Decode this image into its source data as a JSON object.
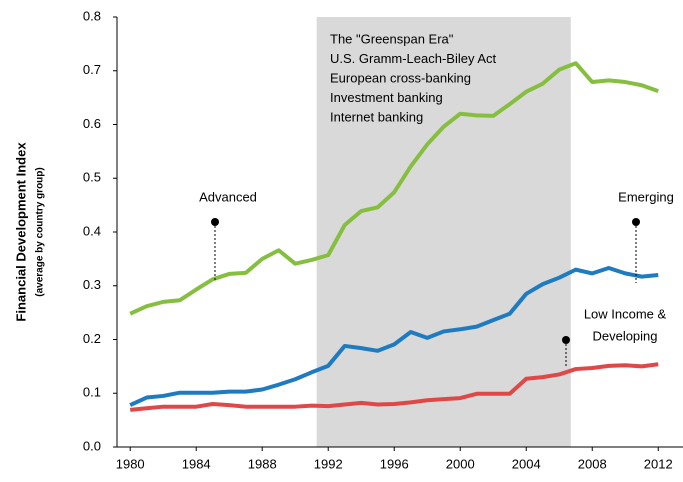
{
  "chart_data": {
    "type": "line",
    "ylabel": "Financial Development Index",
    "ylabel_sub": "(average by country group)",
    "x": [
      1980,
      1981,
      1982,
      1983,
      1984,
      1985,
      1986,
      1987,
      1988,
      1989,
      1990,
      1991,
      1992,
      1993,
      1994,
      1995,
      1996,
      1997,
      1998,
      1999,
      2000,
      2001,
      2002,
      2003,
      2004,
      2005,
      2006,
      2007,
      2008,
      2009,
      2010,
      2011,
      2012
    ],
    "series": [
      {
        "color": "#86bf3f",
        "values": [
          0.248,
          0.262,
          0.27,
          0.273,
          0.293,
          0.312,
          0.322,
          0.324,
          0.35,
          0.366,
          0.341,
          0.348,
          0.357,
          0.413,
          0.439,
          0.446,
          0.474,
          0.522,
          0.563,
          0.596,
          0.62,
          0.617,
          0.616,
          0.638,
          0.661,
          0.676,
          0.702,
          0.714,
          0.679,
          0.682,
          0.679,
          0.673,
          0.662
        ]
      },
      {
        "color": "#1f7bc0",
        "values": [
          0.078,
          0.092,
          0.095,
          0.101,
          0.101,
          0.101,
          0.103,
          0.103,
          0.107,
          0.116,
          0.126,
          0.139,
          0.151,
          0.188,
          0.184,
          0.179,
          0.191,
          0.214,
          0.203,
          0.215,
          0.219,
          0.224,
          0.236,
          0.248,
          0.285,
          0.303,
          0.315,
          0.33,
          0.323,
          0.333,
          0.323,
          0.317,
          0.32
        ]
      },
      {
        "color": "#e04848",
        "values": [
          0.069,
          0.072,
          0.075,
          0.075,
          0.075,
          0.08,
          0.078,
          0.075,
          0.075,
          0.075,
          0.075,
          0.077,
          0.076,
          0.079,
          0.082,
          0.079,
          0.08,
          0.083,
          0.087,
          0.089,
          0.091,
          0.099,
          0.099,
          0.099,
          0.127,
          0.13,
          0.135,
          0.145,
          0.147,
          0.151,
          0.152,
          0.15,
          0.154
        ]
      }
    ],
    "xlim": [
      1979.2,
      2013.5
    ],
    "xticks": [
      1980,
      1984,
      1988,
      1992,
      1996,
      2000,
      2004,
      2008,
      2012
    ],
    "ylim": [
      0,
      0.8
    ],
    "yticks": [
      {
        "value": 0,
        "label": "0.0"
      },
      0.1,
      0.2,
      0.3,
      0.4,
      0.5,
      0.6,
      0.7,
      0.8
    ],
    "shaded_span": [
      1991.3,
      2006.7
    ],
    "shaded_text": [
      "The \"Greenspan Era\"",
      "U.S. Gramm-Leach-Biley Act",
      "European cross-banking",
      "Investment banking",
      "Internet banking"
    ],
    "annotations": [
      {
        "lines": [
          "Advanced"
        ]
      },
      {
        "lines": [
          "Emerging"
        ]
      },
      {
        "lines": [
          "Low Income &",
          "Developing"
        ]
      }
    ]
  }
}
